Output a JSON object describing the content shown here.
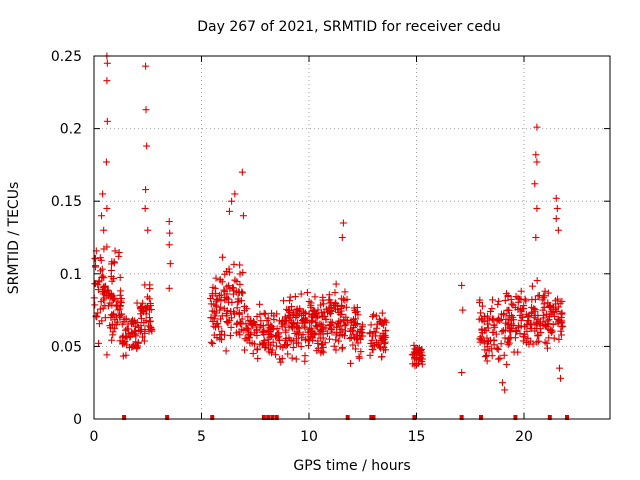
{
  "chart_data": {
    "type": "scatter",
    "title": "Day 267 of 2021, SRMTID for receiver cedu",
    "xlabel": "GPS time / hours",
    "ylabel": "SRMTID / TECUs",
    "xlim": [
      0,
      24
    ],
    "ylim": [
      0,
      0.25
    ],
    "xticks": [
      0,
      5,
      10,
      15,
      20
    ],
    "yticks": [
      0,
      0.05,
      0.1,
      0.15,
      0.2,
      0.25
    ],
    "xtick_labels": [
      "0",
      "5",
      "10",
      "15",
      "20"
    ],
    "ytick_labels": [
      "0",
      "0.05",
      "0.1",
      "0.15",
      "0.2",
      "0.25"
    ],
    "grid": true,
    "marker": "+",
    "color": "#e00000",
    "zero_points_x": [
      1.4,
      3.4,
      5.5,
      7.9,
      8.1,
      8.3,
      8.5,
      11.8,
      12.9,
      13.0,
      14.9,
      17.1,
      18.0,
      19.6,
      21.2,
      22.0
    ],
    "outlier_points": [
      {
        "x": 0.35,
        "y": 0.14
      },
      {
        "x": 0.4,
        "y": 0.155
      },
      {
        "x": 0.45,
        "y": 0.13
      },
      {
        "x": 0.6,
        "y": 0.25
      },
      {
        "x": 0.62,
        "y": 0.245
      },
      {
        "x": 0.6,
        "y": 0.233
      },
      {
        "x": 0.62,
        "y": 0.205
      },
      {
        "x": 0.58,
        "y": 0.177
      },
      {
        "x": 0.6,
        "y": 0.145
      },
      {
        "x": 2.4,
        "y": 0.243
      },
      {
        "x": 2.42,
        "y": 0.213
      },
      {
        "x": 2.45,
        "y": 0.188
      },
      {
        "x": 2.4,
        "y": 0.158
      },
      {
        "x": 2.38,
        "y": 0.145
      },
      {
        "x": 2.5,
        "y": 0.13
      },
      {
        "x": 3.5,
        "y": 0.136
      },
      {
        "x": 3.52,
        "y": 0.128
      },
      {
        "x": 3.5,
        "y": 0.12
      },
      {
        "x": 3.55,
        "y": 0.107
      },
      {
        "x": 3.5,
        "y": 0.09
      },
      {
        "x": 6.55,
        "y": 0.155
      },
      {
        "x": 6.4,
        "y": 0.15
      },
      {
        "x": 6.3,
        "y": 0.143
      },
      {
        "x": 6.9,
        "y": 0.17
      },
      {
        "x": 6.95,
        "y": 0.14
      },
      {
        "x": 11.6,
        "y": 0.135
      },
      {
        "x": 11.55,
        "y": 0.125
      },
      {
        "x": 17.1,
        "y": 0.092
      },
      {
        "x": 17.15,
        "y": 0.075
      },
      {
        "x": 17.1,
        "y": 0.032
      },
      {
        "x": 20.6,
        "y": 0.201
      },
      {
        "x": 20.55,
        "y": 0.182
      },
      {
        "x": 20.6,
        "y": 0.177
      },
      {
        "x": 20.5,
        "y": 0.162
      },
      {
        "x": 20.6,
        "y": 0.145
      },
      {
        "x": 20.55,
        "y": 0.125
      },
      {
        "x": 21.5,
        "y": 0.152
      },
      {
        "x": 21.55,
        "y": 0.145
      },
      {
        "x": 21.5,
        "y": 0.138
      },
      {
        "x": 21.6,
        "y": 0.13
      },
      {
        "x": 21.7,
        "y": 0.028
      },
      {
        "x": 21.65,
        "y": 0.035
      },
      {
        "x": 19.0,
        "y": 0.025
      },
      {
        "x": 19.1,
        "y": 0.02
      }
    ],
    "clusters": [
      {
        "x_from": 0.0,
        "x_to": 1.3,
        "y_center": 0.085,
        "y_spread": 0.05,
        "count": 110
      },
      {
        "x_from": 1.3,
        "x_to": 2.1,
        "y_center": 0.06,
        "y_spread": 0.025,
        "count": 55
      },
      {
        "x_from": 2.1,
        "x_to": 2.7,
        "y_center": 0.07,
        "y_spread": 0.035,
        "count": 45
      },
      {
        "x_from": 5.4,
        "x_to": 7.0,
        "y_center": 0.08,
        "y_spread": 0.04,
        "count": 120
      },
      {
        "x_from": 7.0,
        "x_to": 8.8,
        "y_center": 0.058,
        "y_spread": 0.025,
        "count": 110
      },
      {
        "x_from": 8.8,
        "x_to": 10.6,
        "y_center": 0.065,
        "y_spread": 0.03,
        "count": 150
      },
      {
        "x_from": 10.6,
        "x_to": 11.8,
        "y_center": 0.068,
        "y_spread": 0.032,
        "count": 90
      },
      {
        "x_from": 11.9,
        "x_to": 12.5,
        "y_center": 0.06,
        "y_spread": 0.025,
        "count": 45
      },
      {
        "x_from": 12.8,
        "x_to": 13.6,
        "y_center": 0.058,
        "y_spread": 0.025,
        "count": 55
      },
      {
        "x_from": 14.8,
        "x_to": 15.3,
        "y_center": 0.045,
        "y_spread": 0.012,
        "count": 35
      },
      {
        "x_from": 17.9,
        "x_to": 19.2,
        "y_center": 0.062,
        "y_spread": 0.03,
        "count": 80
      },
      {
        "x_from": 19.2,
        "x_to": 20.8,
        "y_center": 0.068,
        "y_spread": 0.033,
        "count": 110
      },
      {
        "x_from": 20.8,
        "x_to": 21.8,
        "y_center": 0.07,
        "y_spread": 0.03,
        "count": 70
      }
    ]
  }
}
